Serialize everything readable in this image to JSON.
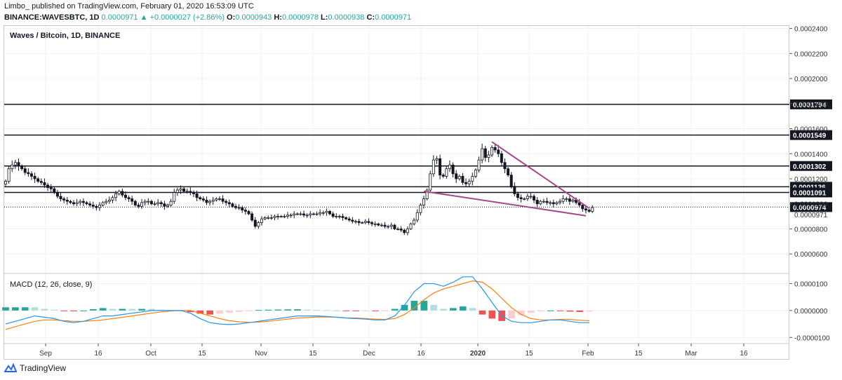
{
  "header": {
    "line1": "Limbo_ published on TradingView.com, February 01, 2020 16:53:09 UTC",
    "symbol": "BINANCE:WAVESBTC, 1D",
    "last": "0.0000971",
    "change": "+0.0000027 (+2.86%)",
    "o_label": "O:",
    "o": "0.0000943",
    "h_label": "H:",
    "h": "0.0000978",
    "l_label": "L:",
    "l": "0.0000938",
    "c_label": "C:",
    "c": "0.0000971"
  },
  "pane_title": "Waves / Bitcoin, 1D, BINANCE",
  "macd_title": "MACD (12, 26, close, 9)",
  "brand": "TradingView",
  "colors": {
    "up": "#131722",
    "down": "#131722",
    "up_fill": "#ffffff",
    "trend": "#a5478b",
    "macd": "#2196f3",
    "signal": "#ff7f0e",
    "hist_pos": "#26a69a",
    "hist_pos_light": "#b2dfdb",
    "hist_neg": "#ef5350",
    "hist_neg_light": "#ffcdd2"
  },
  "chart_data": [
    {
      "type": "candlestick",
      "title": "Waves / Bitcoin, 1D, BINANCE",
      "ylim": [
        4.5e-05,
        0.000242
      ],
      "y_ticks": [
        "0.0002400",
        "0.0002200",
        "0.0002000",
        "0.0001800",
        "0.0001600",
        "0.0001400",
        "0.0001200",
        "0.0001000",
        "0.0000800",
        "0.0000600"
      ],
      "x_ticks": [
        "Sep",
        "16",
        "Oct",
        "15",
        "Nov",
        "15",
        "Dec",
        "16",
        "2020",
        "15",
        "Feb",
        "15",
        "Mar",
        "16"
      ],
      "horizontal_levels": [
        "0.0001794",
        "0.0001549",
        "0.0001302",
        "0.0001136",
        "0.0001091",
        "0.0000974"
      ],
      "last_price": "0.0000971",
      "closes": [
        0.000118,
        0.000128,
        0.000131,
        0.000133,
        0.00013,
        0.000128,
        0.000125,
        0.000124,
        0.000122,
        0.00012,
        0.000118,
        0.000117,
        0.000115,
        0.000113,
        0.000112,
        0.000109,
        0.000106,
        0.000104,
        0.000103,
        0.000102,
        0.000101,
        0.0001,
        0.000101,
        0.000102,
        0.000101,
        0.0001,
        9.9e-05,
        9.8e-05,
        9.7e-05,
        9.9e-05,
        0.000101,
        0.000102,
        0.000103,
        0.000105,
        0.000108,
        0.00011,
        0.000107,
        0.000105,
        0.000104,
        0.000102,
        9.9e-05,
        9.8e-05,
        0.000101,
        0.000102,
        0.000102,
        0.0001,
        0.0001,
        0.000101,
        0.0001,
        9.8e-05,
        9.9e-05,
        0.000102,
        0.000109,
        0.000111,
        0.000112,
        0.00011,
        0.00011,
        0.000109,
        0.000108,
        0.000105,
        0.000104,
        0.000103,
        0.000101,
        0.000102,
        0.000103,
        0.000104,
        0.000104,
        0.000102,
        0.000101,
        0.0001,
        9.8e-05,
        9.7e-05,
        9.7e-05,
        9.5e-05,
        9.4e-05,
        9.2e-05,
        8.7e-05,
        8.2e-05,
        8.5e-05,
        8.8e-05,
        8.9e-05,
        8.9e-05,
        8.9e-05,
        9e-05,
        9e-05,
        9e-05,
        9e-05,
        9.1e-05,
        9.1e-05,
        9.2e-05,
        9.2e-05,
        9.2e-05,
        9.1e-05,
        9.1e-05,
        9.2e-05,
        9.2e-05,
        9.2e-05,
        9.3e-05,
        9.3e-05,
        9.4e-05,
        9.2e-05,
        9e-05,
        9e-05,
        9e-05,
        8.9e-05,
        8.8e-05,
        8.7e-05,
        8.6e-05,
        8.6e-05,
        8.5e-05,
        8.5e-05,
        8.6e-05,
        8.5e-05,
        8.4e-05,
        8.4e-05,
        8.3e-05,
        8.3e-05,
        8.2e-05,
        8.2e-05,
        8.3e-05,
        8e-05,
        8e-05,
        7.9e-05,
        7.7e-05,
        8e-05,
        8.4e-05,
        8.7e-05,
        9.3e-05,
        9.9e-05,
        0.000104,
        0.000111,
        0.000124,
        0.000135,
        0.000136,
        0.000123,
        0.000122,
        0.000128,
        0.000131,
        0.000124,
        0.00012,
        0.000122,
        0.000117,
        0.000116,
        0.000118,
        0.000122,
        0.000127,
        0.000135,
        0.000144,
        0.000137,
        0.000139,
        0.000145,
        0.000143,
        0.00014,
        0.000133,
        0.000128,
        0.000123,
        0.000114,
        0.000108,
        0.000105,
        0.000104,
        0.000104,
        0.000106,
        0.000106,
        0.000103,
        0.0001,
        0.000102,
        0.000102,
        0.000101,
        0.000101,
        0.0001,
        0.000101,
        0.000102,
        0.000104,
        0.000104,
        0.000102,
        0.000103,
        0.000101,
        9.9e-05,
        9.6e-05,
        9.5e-05,
        9.4e-05,
        9.7e-05
      ]
    },
    {
      "type": "line",
      "title": "MACD (12, 26, close, 9)",
      "ylim": [
        -1.2e-05,
        1.35e-05
      ],
      "y_ticks": [
        "0.0000100",
        "0.0000000",
        "-0.0000100"
      ],
      "series": [
        {
          "name": "",
          "values": [
            -5e-06,
            -4e-06,
            -3e-06,
            -2e-06,
            -2.5e-06,
            -3e-06,
            -4e-06,
            -4.5e-06,
            -4e-06,
            -3e-06,
            -2e-06,
            -2e-06,
            -1.5e-06,
            -1e-06,
            -5e-07,
            0.0,
            0.0,
            0.0,
            0.0,
            -1e-06,
            -3e-06,
            -4.5e-06,
            -5e-06,
            -5.2e-06,
            -5e-06,
            -4.5e-06,
            -4e-06,
            -3.5e-06,
            -3e-06,
            -2.5e-06,
            -2e-06,
            -2e-06,
            -2e-06,
            -2.2e-06,
            -2.5e-06,
            -2.8e-06,
            -3e-06,
            -3.2e-06,
            -3.5e-06,
            -3.5e-06,
            -2e-06,
            2e-06,
            7e-06,
            1e-05,
            1e-05,
            9e-06,
            1.05e-05,
            1.25e-05,
            1.25e-05,
            8e-06,
            3e-06,
            -2e-06,
            -4e-06,
            -4.5e-06,
            -4.5e-06,
            -4e-06,
            -3.5e-06,
            -3.5e-06,
            -4e-06,
            -4.5e-06,
            -4.5e-06
          ]
        },
        {
          "name": "",
          "values": [
            -7e-06,
            -6e-06,
            -5e-06,
            -4e-06,
            -3.5e-06,
            -3.5e-06,
            -3.8e-06,
            -4e-06,
            -4e-06,
            -3.8e-06,
            -3.5e-06,
            -3e-06,
            -2.5e-06,
            -2e-06,
            -1.5e-06,
            -1e-06,
            -5e-07,
            -2e-07,
            0.0,
            0.0,
            -1e-06,
            -2e-06,
            -3e-06,
            -3.8e-06,
            -4.2e-06,
            -4.4e-06,
            -4.3e-06,
            -4e-06,
            -3.6e-06,
            -3.2e-06,
            -2.8e-06,
            -2.6e-06,
            -2.4e-06,
            -2.4e-06,
            -2.5e-06,
            -2.7e-06,
            -2.8e-06,
            -3e-06,
            -3.2e-06,
            -3.3e-06,
            -3e-06,
            -1.5e-06,
            1e-06,
            4e-06,
            6.5e-06,
            8e-06,
            9e-06,
            1e-05,
            1.1e-05,
            1.05e-05,
            8e-06,
            4.5e-06,
            1e-06,
            -1.5e-06,
            -3e-06,
            -3.5e-06,
            -3.5e-06,
            -3.3e-06,
            -3.3e-06,
            -3.6e-06,
            -3.8e-06
          ]
        }
      ]
    }
  ]
}
